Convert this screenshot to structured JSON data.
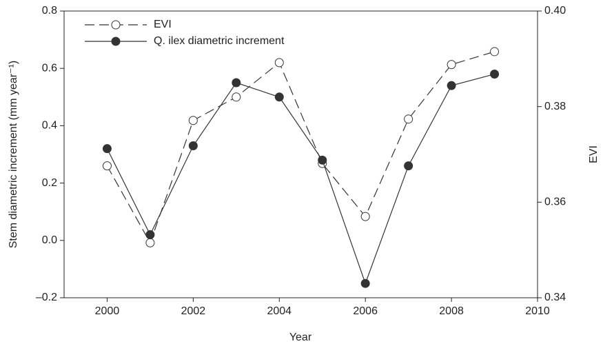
{
  "chart_data": {
    "type": "line",
    "x_label": "Year",
    "y_label": "Stem diametric increment (mm year⁻¹)",
    "y2_label": "EVI",
    "x": [
      2000,
      2001,
      2002,
      2003,
      2004,
      2005,
      2006,
      2007,
      2008,
      2009
    ],
    "xlim": [
      1999,
      2010
    ],
    "xticks": [
      2000,
      2002,
      2004,
      2006,
      2008,
      2010
    ],
    "ylim": [
      -0.2,
      0.8
    ],
    "yticks": [
      {
        "value": -0.2,
        "label": "–0.2"
      },
      {
        "value": 0,
        "label": "0.0"
      },
      0.2,
      0.4,
      0.6,
      0.8
    ],
    "y2lim": [
      0.34,
      0.4
    ],
    "y2ticks": [
      0.34,
      0.36,
      0.38,
      {
        "value": 0.4,
        "label": "0.40"
      }
    ],
    "legend": "upper left",
    "series": [
      {
        "name": "EVI",
        "color": "#333333",
        "axis": "y2",
        "dash": "dashed",
        "marker": "open",
        "values": [
          0.3676,
          0.3515,
          0.3771,
          0.382,
          0.3892,
          0.3681,
          0.357,
          0.3774,
          0.3888,
          0.3915
        ]
      },
      {
        "name": "Q. ilex diametric increment",
        "color": "#333333",
        "dash": "solid",
        "marker": "filled",
        "values": [
          0.32,
          0.02,
          0.33,
          0.55,
          0.5,
          0.28,
          -0.15,
          0.26,
          0.54,
          0.58
        ]
      }
    ]
  }
}
